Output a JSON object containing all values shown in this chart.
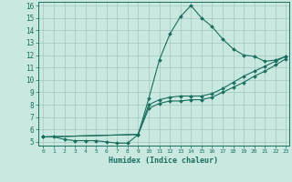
{
  "xlabel": "Humidex (Indice chaleur)",
  "bg_color": "#c8e8e0",
  "grid_color": "#a0c8c0",
  "line_color": "#1a6e5e",
  "xlim": [
    -0.5,
    23.3
  ],
  "ylim": [
    4.7,
    16.3
  ],
  "xticks": [
    0,
    1,
    2,
    3,
    4,
    5,
    6,
    7,
    8,
    9,
    10,
    11,
    12,
    13,
    14,
    15,
    16,
    17,
    18,
    19,
    20,
    21,
    22,
    23
  ],
  "yticks": [
    5,
    6,
    7,
    8,
    9,
    10,
    11,
    12,
    13,
    14,
    15,
    16
  ],
  "curve1_x": [
    0,
    1,
    2,
    3,
    4,
    5,
    6,
    7,
    8,
    9,
    10,
    11,
    12,
    13,
    14,
    15,
    16,
    17,
    18,
    19,
    20,
    21,
    22,
    23
  ],
  "curve1_y": [
    5.4,
    5.4,
    5.2,
    5.1,
    5.1,
    5.1,
    5.0,
    4.9,
    4.9,
    5.6,
    8.5,
    11.6,
    13.7,
    15.1,
    16.0,
    15.0,
    14.3,
    13.3,
    12.5,
    12.0,
    11.9,
    11.5,
    11.6,
    11.9
  ],
  "curve2_x": [
    0,
    9,
    10,
    11,
    12,
    13,
    14,
    15,
    16,
    17,
    18,
    19,
    20,
    21,
    22,
    23
  ],
  "curve2_y": [
    5.4,
    5.6,
    8.0,
    8.4,
    8.6,
    8.7,
    8.7,
    8.7,
    8.9,
    9.3,
    9.8,
    10.3,
    10.7,
    11.1,
    11.5,
    11.9
  ],
  "curve3_x": [
    0,
    9,
    10,
    11,
    12,
    13,
    14,
    15,
    16,
    17,
    18,
    19,
    20,
    21,
    22,
    23
  ],
  "curve3_y": [
    5.4,
    5.6,
    7.7,
    8.1,
    8.3,
    8.3,
    8.4,
    8.4,
    8.6,
    9.0,
    9.4,
    9.8,
    10.3,
    10.7,
    11.2,
    11.7
  ]
}
